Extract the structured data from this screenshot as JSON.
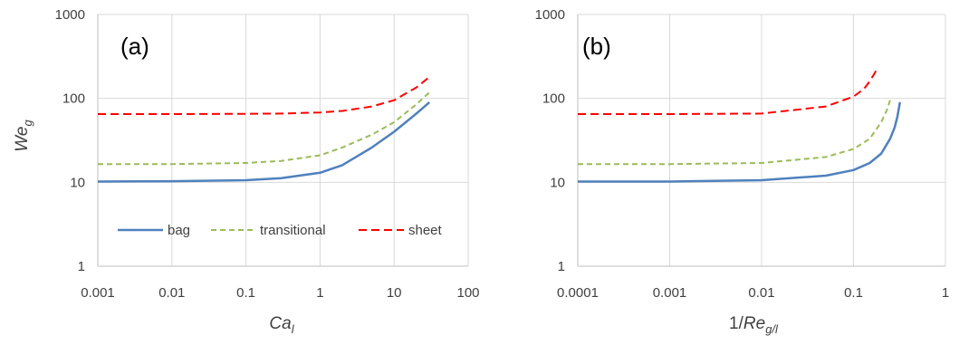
{
  "chart_data": [
    {
      "type": "line",
      "panel_label": "(a)",
      "xlabel": {
        "main": "Ca",
        "sub": "l"
      },
      "ylabel": {
        "main": "We",
        "sub": "g"
      },
      "xscale": "log",
      "yscale": "log",
      "xlim": [
        0.001,
        100
      ],
      "ylim": [
        1,
        1000
      ],
      "x_ticks": [
        "0.001",
        "0.01",
        "0.1",
        "1",
        "10",
        "100"
      ],
      "y_ticks": [
        "1",
        "10",
        "100",
        "1000"
      ],
      "grid": true,
      "legend": {
        "position": "lower-center"
      },
      "series": [
        {
          "name": "bag",
          "color": "#4f81bd",
          "dash": "solid",
          "x": [
            0.001,
            0.01,
            0.1,
            0.3,
            1,
            2,
            5,
            10,
            20,
            30
          ],
          "y": [
            10.2,
            10.3,
            10.6,
            11.2,
            13,
            16,
            26,
            40,
            66,
            90
          ]
        },
        {
          "name": "transitional",
          "color": "#9bbb59",
          "dash": "dashed",
          "x": [
            0.001,
            0.01,
            0.1,
            0.3,
            1,
            2,
            5,
            10,
            20,
            30
          ],
          "y": [
            16.5,
            16.5,
            17,
            18,
            21,
            26,
            37,
            52,
            85,
            118
          ]
        },
        {
          "name": "sheet",
          "color": "#ff0000",
          "dash": "dashed",
          "x": [
            0.001,
            0.01,
            0.1,
            0.3,
            1,
            2,
            5,
            10,
            20,
            30
          ],
          "y": [
            65,
            65,
            65.5,
            66,
            68,
            71,
            80,
            95,
            135,
            180
          ]
        }
      ]
    },
    {
      "type": "line",
      "panel_label": "(b)",
      "xlabel": {
        "pre": "1/",
        "main": "Re",
        "sub": "g/l"
      },
      "ylabel": {
        "main": "",
        "sub": ""
      },
      "xscale": "log",
      "yscale": "log",
      "xlim": [
        0.0001,
        1
      ],
      "ylim": [
        1,
        1000
      ],
      "x_ticks": [
        "0.0001",
        "0.001",
        "0.01",
        "0.1",
        "1"
      ],
      "y_ticks": [
        "1",
        "10",
        "100",
        "1000"
      ],
      "grid": true,
      "series": [
        {
          "name": "bag",
          "color": "#4f81bd",
          "dash": "solid",
          "x": [
            0.0001,
            0.001,
            0.01,
            0.05,
            0.1,
            0.15,
            0.2,
            0.25,
            0.28,
            0.3,
            0.32
          ],
          "y": [
            10.2,
            10.2,
            10.6,
            12,
            14,
            17,
            22,
            33,
            45,
            60,
            90
          ]
        },
        {
          "name": "transitional",
          "color": "#9bbb59",
          "dash": "dashed",
          "x": [
            0.0001,
            0.001,
            0.01,
            0.05,
            0.1,
            0.15,
            0.2,
            0.23,
            0.25
          ],
          "y": [
            16.5,
            16.5,
            17,
            20,
            25,
            33,
            52,
            72,
            95
          ]
        },
        {
          "name": "sheet",
          "color": "#ff0000",
          "dash": "dashed",
          "x": [
            0.0001,
            0.001,
            0.01,
            0.05,
            0.1,
            0.13,
            0.15,
            0.17,
            0.18
          ],
          "y": [
            65,
            65,
            66,
            80,
            105,
            130,
            160,
            200,
            225
          ]
        }
      ]
    }
  ]
}
